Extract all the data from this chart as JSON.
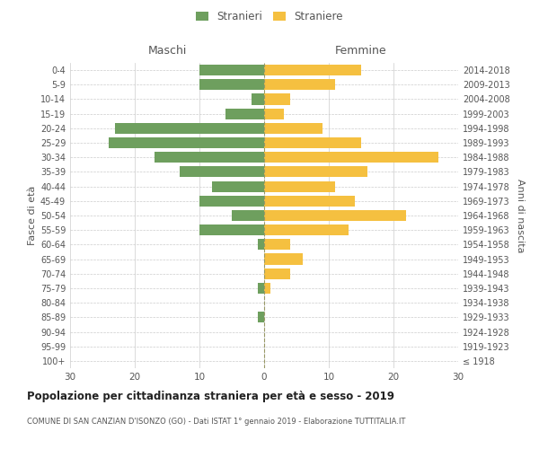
{
  "age_groups": [
    "100+",
    "95-99",
    "90-94",
    "85-89",
    "80-84",
    "75-79",
    "70-74",
    "65-69",
    "60-64",
    "55-59",
    "50-54",
    "45-49",
    "40-44",
    "35-39",
    "30-34",
    "25-29",
    "20-24",
    "15-19",
    "10-14",
    "5-9",
    "0-4"
  ],
  "birth_years": [
    "≤ 1918",
    "1919-1923",
    "1924-1928",
    "1929-1933",
    "1934-1938",
    "1939-1943",
    "1944-1948",
    "1949-1953",
    "1954-1958",
    "1959-1963",
    "1964-1968",
    "1969-1973",
    "1974-1978",
    "1979-1983",
    "1984-1988",
    "1989-1993",
    "1994-1998",
    "1999-2003",
    "2004-2008",
    "2009-2013",
    "2014-2018"
  ],
  "males": [
    0,
    0,
    0,
    1,
    0,
    1,
    0,
    0,
    1,
    10,
    5,
    10,
    8,
    13,
    17,
    24,
    23,
    6,
    2,
    10,
    10
  ],
  "females": [
    0,
    0,
    0,
    0,
    0,
    1,
    4,
    6,
    4,
    13,
    22,
    14,
    11,
    16,
    27,
    15,
    9,
    3,
    4,
    11,
    15
  ],
  "male_color": "#6e9f5e",
  "female_color": "#f5c040",
  "title": "Popolazione per cittadinanza straniera per età e sesso - 2019",
  "subtitle": "COMUNE DI SAN CANZIAN D'ISONZO (GO) - Dati ISTAT 1° gennaio 2019 - Elaborazione TUTTITALIA.IT",
  "ylabel_left": "Fasce di età",
  "ylabel_right": "Anni di nascita",
  "xlabel_left": "Maschi",
  "xlabel_right": "Femmine",
  "legend_stranieri": "Stranieri",
  "legend_straniere": "Straniere",
  "xlim": 30,
  "background_color": "#ffffff",
  "grid_color": "#cccccc",
  "text_color": "#555555"
}
